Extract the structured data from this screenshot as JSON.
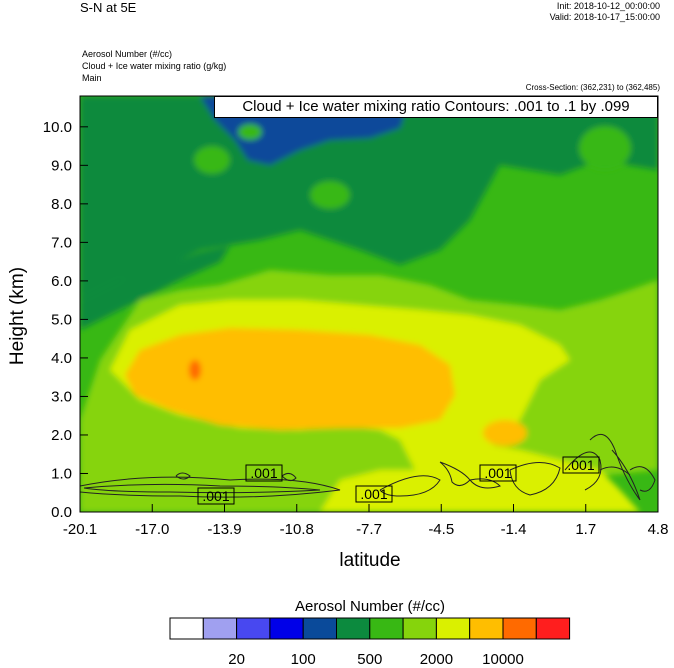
{
  "header": {
    "title": "S-N at 5E",
    "init": "Init: 2018-10-12_00:00:00",
    "valid": "Valid: 2018-10-17_15:00:00",
    "field1": "Aerosol Number   (#/cc)",
    "field2": "Cloud + Ice water mixing ratio   (g/kg)",
    "field3": "Main",
    "cross_section": "Cross-Section: (362,231) to (362,485)"
  },
  "chart_data": {
    "type": "heatmap",
    "contour_title": "Cloud + Ice water mixing ratio Contours: .001 to .1 by .099",
    "xlabel": "latitude",
    "ylabel": "Height (km)",
    "x_ticks": [
      "-20.1",
      "-17.0",
      "-13.9",
      "-10.8",
      "-7.7",
      "-4.5",
      "-1.4",
      "1.7",
      "4.8"
    ],
    "y_ticks": [
      "0.0",
      "1.0",
      "2.0",
      "3.0",
      "4.0",
      "5.0",
      "6.0",
      "7.0",
      "8.0",
      "9.0",
      "10.0"
    ],
    "xlim": [
      -20.1,
      4.8
    ],
    "ylim": [
      0,
      10.8
    ],
    "contour_labels": [
      ".001",
      ".001",
      ".001",
      ".001",
      ".001"
    ],
    "colorbar": {
      "title": "Aerosol Number  (#/cc)",
      "labels": [
        "20",
        "100",
        "500",
        "2000",
        "10000"
      ],
      "colors": [
        "#ffffff",
        "#a0a0f0",
        "#4848f0",
        "#0000e8",
        "#0a4a9a",
        "#0c8a3e",
        "#38b814",
        "#86d40c",
        "#daf000",
        "#ffbe00",
        "#ff6a00",
        "#ff1e1e"
      ]
    }
  }
}
